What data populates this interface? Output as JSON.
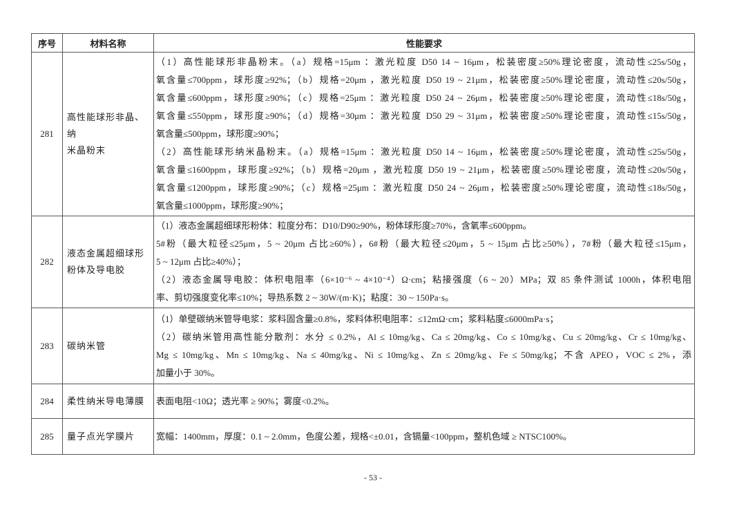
{
  "header": {
    "no": "序号",
    "name": "材料名称",
    "spec": "性能要求"
  },
  "rows": [
    {
      "no": "281",
      "name_lines": [
        "高性能球形非晶、纳",
        "米晶粉末"
      ],
      "paragraphs": [
        [
          "（1）高性能球形非晶粉末。（a）规格=15μm ：激光粒度 D50 14 ~ 16μm，松装密度≥50%理论密度，流动性≤25s/50g，",
          "氧含量≤700ppm，球形度≥92%；（b）规格=20μm ，激光粒度 D50 19 ~ 21μm，松装密度≥50%理论密度，流动性≤20s/50g，",
          "氧含量≤600ppm，球形度≥90%；（c）规格=25μm ：激光粒度 D50 24 ~ 26μm，松装密度≥50%理论密度，流动性≤18s/50g，",
          "氧含量≤550ppm，球形度≥90%；（d）规格=30μm ：激光粒度 D50 29 ~ 31μm，松装密度≥50%理论密度，流动性≤15s/50g，",
          "氧含量≤500ppm，球形度≥90%；"
        ],
        [
          "（2）高性能球形纳米晶粉末。（a）规格=15μm ：激光粒度 D50 14 ~ 16μm，松装密度≥50%理论密度，流动性≤25s/50g，",
          "氧含量≤1600ppm，球形度≥92%；（b）规格=20μm ，激光粒度 D50 19 ~ 21μm，松装密度≥50%理论密度，流动性≤20s/50g，",
          "氧含量≤1200ppm，球形度≥90%；（c）规格=25μm ：激光粒度 D50 24 ~ 26μm，松装密度≥50%理论密度，流动性≤18s/50g，",
          "氧含量≤1000ppm，球形度≥90%；"
        ]
      ]
    },
    {
      "no": "282",
      "name_lines": [
        "液态金属超细球形",
        "粉体及导电胶"
      ],
      "paragraphs": [
        [
          "（1）液态金属超细球形粉体：粒度分布：D10/D90≥90%，粉体球形度≥70%，含氧率≤600ppm。"
        ],
        [
          "5#粉（最大粒径≤25μm，5 ~ 20μm 占比≥60%），6#粉（最大粒径≤20μm，5 ~ 15μm 占比≥50%），7#粉（最大粒径≤15μm，",
          "5 ~ 12μm 占比≥40%）；"
        ],
        [
          "（2）液态金属导电胶：体积电阻率（6×10⁻⁶ ~ 4×10⁻⁴）Ω·cm；粘接强度（6 ~ 20）MPa；双 85 条件测试 1000h，体积电阻",
          "率、剪切强度变化率≤10%；导热系数 2 ~ 30W/(m·K)；粘度：30 ~ 150Pa·s。"
        ]
      ]
    },
    {
      "no": "283",
      "name_lines": [
        "碳纳米管"
      ],
      "paragraphs": [
        [
          "（1）单壁碳纳米管导电浆：浆料固含量≥0.8%，浆料体积电阻率：≤12mΩ·cm；浆料粘度≤6000mPa·s；"
        ],
        [
          "（2）碳纳米管用高性能分散剂：水分 ≤ 0.2%，Al ≤ 10mg/kg、Ca ≤ 20mg/kg、Co ≤ 10mg/kg、Cu ≤ 20mg/kg、Cr ≤ 10mg/kg、",
          "Mg ≤ 10mg/kg、Mn ≤ 10mg/kg、Na ≤ 40mg/kg、Ni ≤ 10mg/kg、Zn ≤ 20mg/kg、Fe ≤ 50mg/kg；不含 APEO，VOC ≤ 2%，添",
          "加量小于 30%。"
        ]
      ]
    },
    {
      "no": "284",
      "name_lines": [
        "柔性纳米导电薄膜"
      ],
      "paragraphs": [
        [
          "表面电阻<10Ω；透光率 ≥ 90%；雾度<0.2%。"
        ]
      ]
    },
    {
      "no": "285",
      "name_lines": [
        "量子点光学膜片"
      ],
      "paragraphs": [
        [
          "宽幅：1400mm，厚度：0.1 ~ 2.0mm，色度公差，规格<±0.01，含镉量<100ppm，整机色域 ≥ NTSC100%。"
        ]
      ]
    }
  ],
  "footer": {
    "page_number": "- 53 -"
  }
}
